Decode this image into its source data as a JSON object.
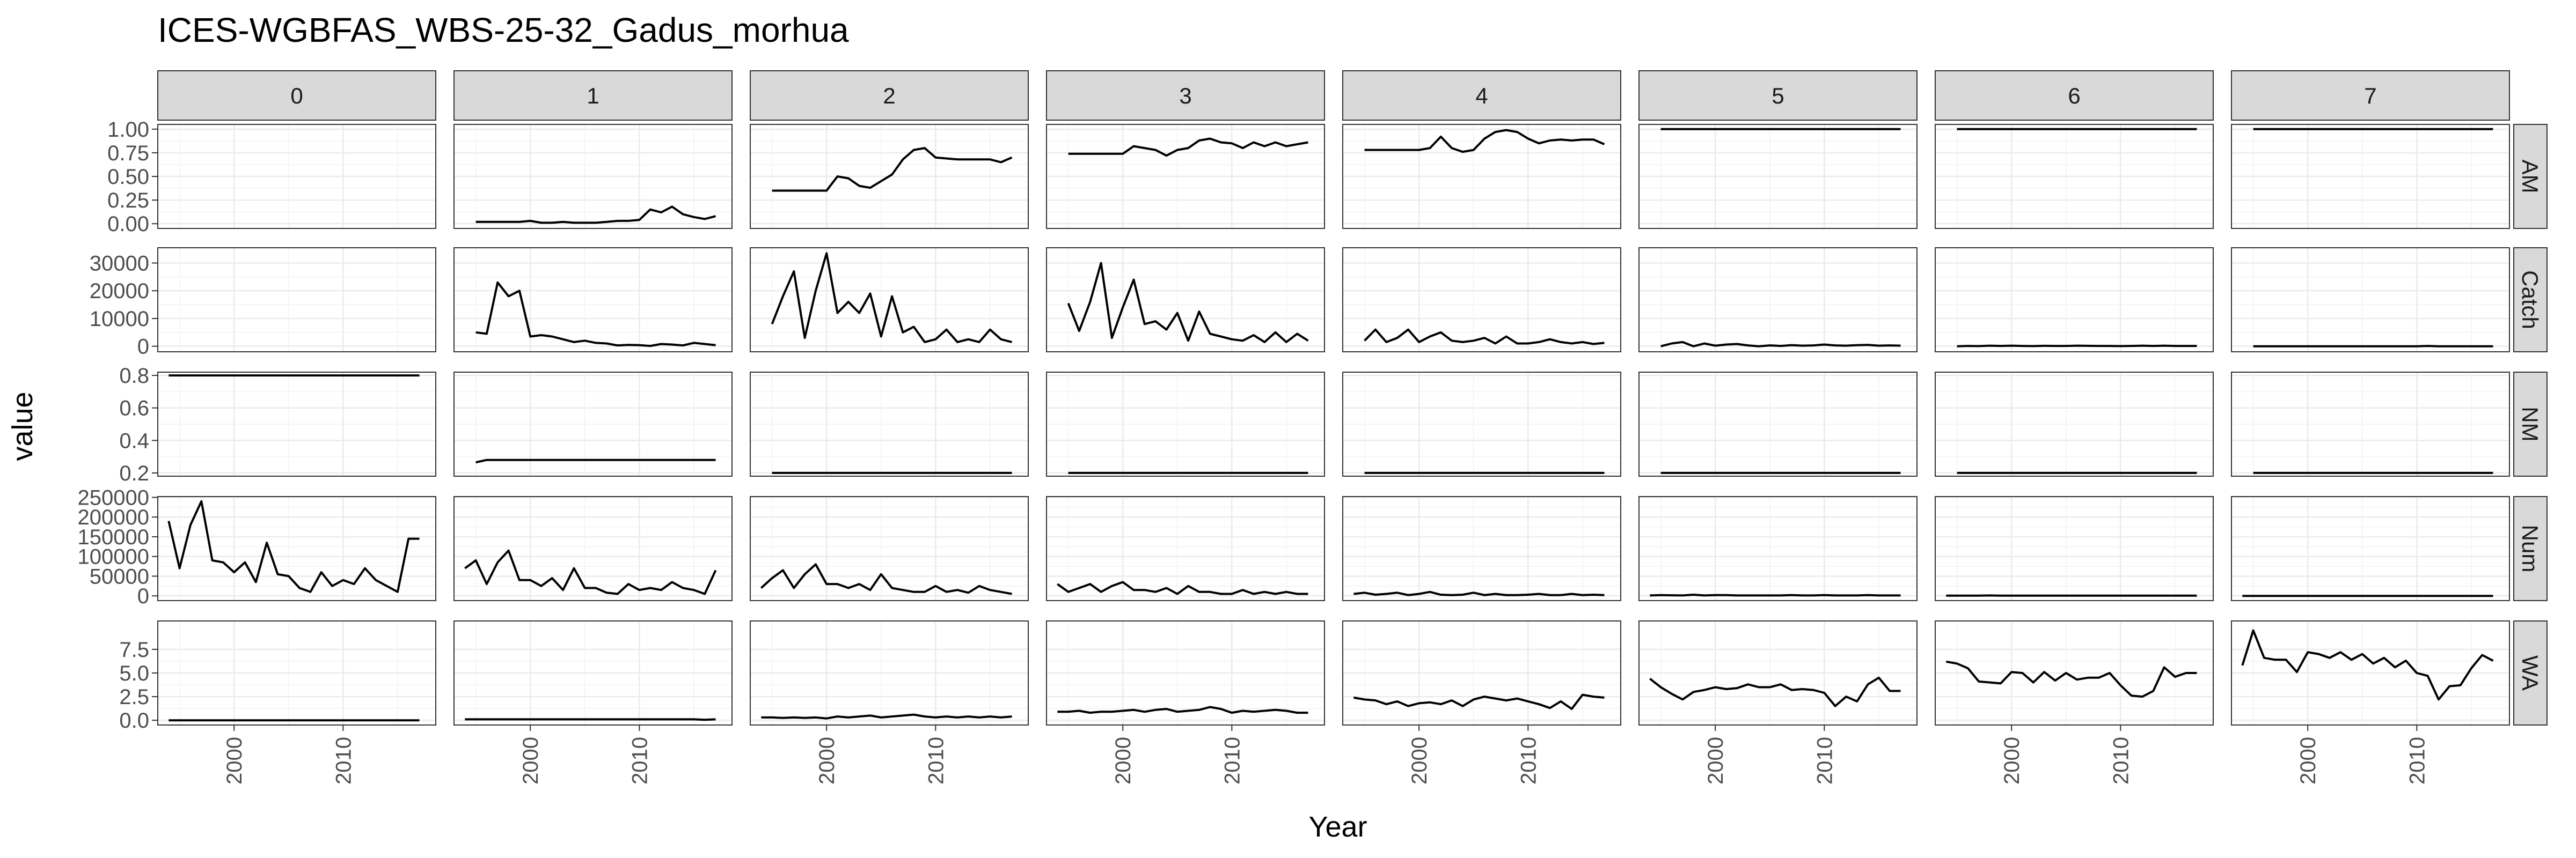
{
  "chart_data": {
    "type": "line",
    "title": "ICES-WGBFAS_WBS-25-32_Gadus_morhua",
    "xlabel": "Year",
    "ylabel": "value",
    "ages": [
      "0",
      "1",
      "2",
      "3",
      "4",
      "5",
      "6",
      "7"
    ],
    "variables": [
      "AM",
      "Catch",
      "NM",
      "Num",
      "WA"
    ],
    "x_ticks": [
      2000,
      2010
    ],
    "xlim": [
      1993,
      2018.5
    ],
    "years": [
      1994,
      1995,
      1996,
      1997,
      1998,
      1999,
      2000,
      2001,
      2002,
      2003,
      2004,
      2005,
      2006,
      2007,
      2008,
      2009,
      2010,
      2011,
      2012,
      2013,
      2014,
      2015,
      2016,
      2017
    ],
    "rows": {
      "AM": {
        "ylim": [
          -0.05,
          1.05
        ],
        "ticks": [
          0,
          0.25,
          0.5,
          0.75,
          1.0
        ],
        "tick_labels": [
          "0.00",
          "0.25",
          "0.50",
          "0.75",
          "1.00"
        ]
      },
      "Catch": {
        "ylim": [
          -2000,
          35500
        ],
        "ticks": [
          0,
          10000,
          20000,
          30000
        ],
        "tick_labels": [
          "0",
          "10000",
          "20000",
          "30000"
        ]
      },
      "NM": {
        "ylim": [
          0.18,
          0.82
        ],
        "ticks": [
          0.2,
          0.4,
          0.6,
          0.8
        ],
        "tick_labels": [
          "0.2",
          "0.4",
          "0.6",
          "0.8"
        ]
      },
      "Num": {
        "ylim": [
          -12000,
          252000
        ],
        "ticks": [
          0,
          50000,
          100000,
          150000,
          200000,
          250000
        ],
        "tick_labels": [
          "0",
          "50000",
          "100000",
          "150000",
          "200000",
          "250000"
        ]
      },
      "WA": {
        "ylim": [
          -0.5,
          10.5
        ],
        "ticks": [
          0,
          2.5,
          5,
          7.5
        ],
        "tick_labels": [
          "0.0",
          "2.5",
          "5.0",
          "7.5"
        ]
      }
    },
    "series": {
      "AM": {
        "1": [
          0.02,
          0.02,
          0.02,
          0.02,
          0.02,
          0.03,
          0.01,
          0.01,
          0.02,
          0.01,
          0.01,
          0.01,
          0.02,
          0.03,
          0.03,
          0.04,
          0.15,
          0.12,
          0.18,
          0.1,
          0.07,
          0.05,
          0.08
        ],
        "2": [
          0.35,
          0.35,
          0.35,
          0.35,
          0.35,
          0.35,
          0.5,
          0.48,
          0.4,
          0.38,
          0.45,
          0.52,
          0.68,
          0.78,
          0.8,
          0.7,
          0.69,
          0.68,
          0.68,
          0.68,
          0.68,
          0.65,
          0.7
        ],
        "3": [
          0.74,
          0.74,
          0.74,
          0.74,
          0.74,
          0.74,
          0.82,
          0.8,
          0.78,
          0.72,
          0.78,
          0.8,
          0.88,
          0.9,
          0.86,
          0.85,
          0.8,
          0.86,
          0.82,
          0.86,
          0.82,
          0.84,
          0.86
        ],
        "4": [
          0.78,
          0.78,
          0.78,
          0.78,
          0.78,
          0.78,
          0.8,
          0.92,
          0.8,
          0.76,
          0.78,
          0.9,
          0.97,
          0.99,
          0.97,
          0.9,
          0.85,
          0.88,
          0.89,
          0.88,
          0.89,
          0.89,
          0.84
        ],
        "5": [
          1,
          1,
          1,
          1,
          1,
          1,
          1,
          1,
          1,
          1,
          1,
          1,
          1,
          1,
          1,
          1,
          1,
          1,
          1,
          1,
          1,
          1,
          1
        ],
        "6": [
          1,
          1,
          1,
          1,
          1,
          1,
          1,
          1,
          1,
          1,
          1,
          1,
          1,
          1,
          1,
          1,
          1,
          1,
          1,
          1,
          1,
          1,
          1
        ],
        "7": [
          1,
          1,
          1,
          1,
          1,
          1,
          1,
          1,
          1,
          1,
          1,
          1,
          1,
          1,
          1,
          1,
          1,
          1,
          1,
          1,
          1,
          1,
          1
        ]
      },
      "Catch": {
        "1": [
          5000,
          4500,
          23000,
          18000,
          20000,
          3500,
          4000,
          3500,
          2500,
          1500,
          2000,
          1200,
          1000,
          300,
          500,
          400,
          100,
          800,
          600,
          300,
          1200,
          800,
          400
        ],
        "2": [
          8000,
          18000,
          27000,
          3000,
          20000,
          33500,
          12000,
          16000,
          12000,
          19000,
          3500,
          18000,
          5000,
          7000,
          1500,
          2500,
          6000,
          1500,
          2500,
          1500,
          6000,
          2500,
          1500
        ],
        "3": [
          15500,
          5500,
          16000,
          30000,
          3000,
          14000,
          24000,
          8000,
          9000,
          6000,
          12000,
          2000,
          12500,
          4500,
          3500,
          2500,
          2000,
          4000,
          1500,
          5000,
          1500,
          4500,
          2000
        ],
        "4": [
          2000,
          6000,
          1500,
          3000,
          6000,
          1500,
          3500,
          5000,
          2000,
          1500,
          2000,
          3000,
          1000,
          3500,
          1000,
          1000,
          1500,
          2500,
          1500,
          1000,
          1500,
          800,
          1200
        ],
        "5": [
          0,
          1000,
          1500,
          0,
          1000,
          200,
          600,
          800,
          300,
          0,
          300,
          100,
          400,
          200,
          300,
          600,
          300,
          200,
          400,
          500,
          200,
          300,
          200
        ],
        "6": [
          0,
          100,
          50,
          200,
          100,
          200,
          100,
          50,
          150,
          100,
          100,
          200,
          150,
          100,
          100,
          50,
          100,
          200,
          100,
          200,
          100,
          100,
          100
        ],
        "7": [
          0,
          0,
          0,
          0,
          0,
          0,
          0,
          0,
          0,
          0,
          0,
          0,
          0,
          0,
          0,
          0,
          100,
          0,
          0,
          0,
          0,
          0,
          0
        ]
      },
      "NM": {
        "0": [
          0.8,
          0.8,
          0.8,
          0.8,
          0.8,
          0.8,
          0.8,
          0.8,
          0.8,
          0.8,
          0.8,
          0.8,
          0.8,
          0.8,
          0.8,
          0.8,
          0.8,
          0.8,
          0.8,
          0.8,
          0.8,
          0.8,
          0.8,
          0.8
        ],
        "1": [
          0.265,
          0.28,
          0.28,
          0.28,
          0.28,
          0.28,
          0.28,
          0.28,
          0.28,
          0.28,
          0.28,
          0.28,
          0.28,
          0.28,
          0.28,
          0.28,
          0.28,
          0.28,
          0.28,
          0.28,
          0.28,
          0.28,
          0.28
        ],
        "2": [
          0.2,
          0.2,
          0.2,
          0.2,
          0.2,
          0.2,
          0.2,
          0.2,
          0.2,
          0.2,
          0.2,
          0.2,
          0.2,
          0.2,
          0.2,
          0.2,
          0.2,
          0.2,
          0.2,
          0.2,
          0.2,
          0.2,
          0.2
        ],
        "3": [
          0.2,
          0.2,
          0.2,
          0.2,
          0.2,
          0.2,
          0.2,
          0.2,
          0.2,
          0.2,
          0.2,
          0.2,
          0.2,
          0.2,
          0.2,
          0.2,
          0.2,
          0.2,
          0.2,
          0.2,
          0.2,
          0.2,
          0.2
        ],
        "4": [
          0.2,
          0.2,
          0.2,
          0.2,
          0.2,
          0.2,
          0.2,
          0.2,
          0.2,
          0.2,
          0.2,
          0.2,
          0.2,
          0.2,
          0.2,
          0.2,
          0.2,
          0.2,
          0.2,
          0.2,
          0.2,
          0.2,
          0.2
        ],
        "5": [
          0.2,
          0.2,
          0.2,
          0.2,
          0.2,
          0.2,
          0.2,
          0.2,
          0.2,
          0.2,
          0.2,
          0.2,
          0.2,
          0.2,
          0.2,
          0.2,
          0.2,
          0.2,
          0.2,
          0.2,
          0.2,
          0.2,
          0.2
        ],
        "6": [
          0.2,
          0.2,
          0.2,
          0.2,
          0.2,
          0.2,
          0.2,
          0.2,
          0.2,
          0.2,
          0.2,
          0.2,
          0.2,
          0.2,
          0.2,
          0.2,
          0.2,
          0.2,
          0.2,
          0.2,
          0.2,
          0.2,
          0.2
        ],
        "7": [
          0.2,
          0.2,
          0.2,
          0.2,
          0.2,
          0.2,
          0.2,
          0.2,
          0.2,
          0.2,
          0.2,
          0.2,
          0.2,
          0.2,
          0.2,
          0.2,
          0.2,
          0.2,
          0.2,
          0.2,
          0.2,
          0.2,
          0.2
        ]
      },
      "Num": {
        "0": [
          190000,
          70000,
          180000,
          240000,
          90000,
          85000,
          60000,
          85000,
          35000,
          135000,
          55000,
          50000,
          20000,
          10000,
          60000,
          25000,
          40000,
          30000,
          70000,
          40000,
          25000,
          10000,
          145000,
          145000
        ],
        "1": [
          70000,
          90000,
          30000,
          85000,
          115000,
          40000,
          40000,
          25000,
          45000,
          15000,
          70000,
          20000,
          20000,
          8000,
          5000,
          30000,
          15000,
          20000,
          15000,
          35000,
          20000,
          15000,
          5000,
          65000
        ],
        "2": [
          20000,
          45000,
          65000,
          20000,
          55000,
          80000,
          30000,
          30000,
          20000,
          30000,
          15000,
          55000,
          20000,
          15000,
          10000,
          10000,
          25000,
          10000,
          15000,
          8000,
          25000,
          15000,
          10000,
          5000
        ],
        "3": [
          30000,
          10000,
          20000,
          30000,
          10000,
          25000,
          35000,
          15000,
          15000,
          10000,
          20000,
          5000,
          25000,
          10000,
          10000,
          5000,
          5000,
          15000,
          5000,
          10000,
          5000,
          10000,
          5000,
          5000
        ],
        "4": [
          5000,
          8000,
          3000,
          5000,
          8000,
          2000,
          5000,
          10000,
          3000,
          2000,
          3000,
          8000,
          2000,
          5000,
          2000,
          2000,
          3000,
          5000,
          2000,
          2000,
          5000,
          2000,
          3000,
          2000
        ],
        "5": [
          1000,
          2000,
          1500,
          1000,
          3000,
          1000,
          2000,
          2000,
          1000,
          1000,
          1000,
          1000,
          1000,
          2000,
          1000,
          1000,
          2000,
          1000,
          1000,
          1000,
          2000,
          1000,
          1000,
          1000
        ],
        "6": [
          500,
          500,
          500,
          500,
          1000,
          500,
          500,
          500,
          500,
          500,
          500,
          500,
          500,
          500,
          500,
          500,
          500,
          500,
          500,
          500,
          500,
          500,
          500,
          500
        ],
        "7": [
          0,
          0,
          0,
          0,
          0,
          0,
          0,
          0,
          0,
          0,
          0,
          0,
          0,
          0,
          0,
          0,
          0,
          0,
          0,
          0,
          0,
          0,
          0,
          0
        ]
      },
      "WA": {
        "0": [
          0,
          0,
          0,
          0,
          0,
          0,
          0,
          0,
          0,
          0,
          0,
          0,
          0,
          0,
          0,
          0,
          0,
          0,
          0,
          0,
          0,
          0,
          0,
          0
        ],
        "1": [
          0.1,
          0.1,
          0.1,
          0.1,
          0.1,
          0.1,
          0.1,
          0.1,
          0.1,
          0.1,
          0.1,
          0.1,
          0.1,
          0.1,
          0.1,
          0.1,
          0.1,
          0.1,
          0.1,
          0.1,
          0.1,
          0.1,
          0.05,
          0.1
        ],
        "2": [
          0.3,
          0.3,
          0.25,
          0.3,
          0.25,
          0.3,
          0.2,
          0.4,
          0.3,
          0.4,
          0.5,
          0.3,
          0.4,
          0.5,
          0.6,
          0.4,
          0.3,
          0.4,
          0.3,
          0.4,
          0.3,
          0.4,
          0.3,
          0.4
        ],
        "3": [
          0.9,
          0.9,
          1,
          0.8,
          0.9,
          0.9,
          1,
          1.1,
          0.9,
          1.1,
          1.2,
          0.9,
          1,
          1.1,
          1.4,
          1.2,
          0.8,
          1,
          0.9,
          1,
          1.1,
          1,
          0.8,
          0.8
        ],
        "4": [
          2.4,
          2.2,
          2.1,
          1.7,
          2,
          1.5,
          1.8,
          1.9,
          1.7,
          2.1,
          1.5,
          2.2,
          2.5,
          2.3,
          2.1,
          2.3,
          2,
          1.7,
          1.3,
          2,
          1.2,
          2.7,
          2.5,
          2.4
        ],
        "5": [
          4.4,
          3.5,
          2.8,
          2.2,
          3,
          3.2,
          3.5,
          3.3,
          3.4,
          3.8,
          3.5,
          3.5,
          3.8,
          3.2,
          3.3,
          3.2,
          2.9,
          1.5,
          2.5,
          2,
          3.8,
          4.5,
          3.1,
          3.1
        ],
        "6": [
          6.2,
          6,
          5.5,
          4.1,
          4,
          3.9,
          5.1,
          5,
          4,
          5.1,
          4.2,
          5,
          4.3,
          4.5,
          4.5,
          5,
          3.7,
          2.6,
          2.5,
          3.1,
          5.6,
          4.6,
          5,
          5
        ],
        "7": [
          5.8,
          9.5,
          6.6,
          6.4,
          6.4,
          5.1,
          7.2,
          7,
          6.6,
          7.2,
          6.4,
          7,
          6,
          6.6,
          5.6,
          6.3,
          5,
          4.7,
          2.2,
          3.6,
          3.7,
          5.5,
          6.9,
          6.3
        ]
      }
    }
  }
}
